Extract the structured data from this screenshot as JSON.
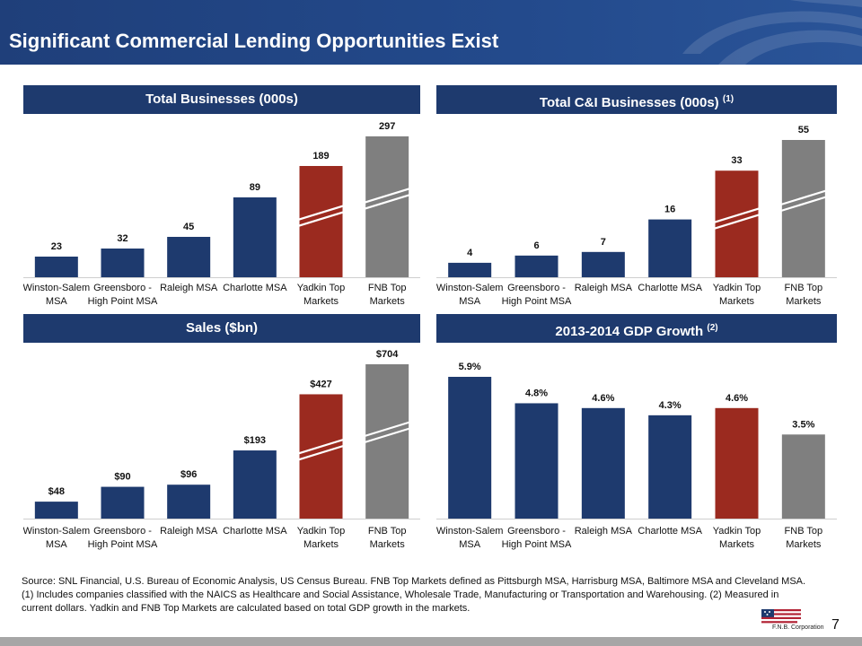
{
  "header": {
    "title": "Significant Commercial Lending Opportunities Exist"
  },
  "colors": {
    "navy": "#1e3a6e",
    "red": "#9b2a1f",
    "gray": "#7f7f7f",
    "header_blue": "#234a8c"
  },
  "panels": {
    "total_businesses": {
      "title": "Total Businesses (000s)",
      "footnote": ""
    },
    "total_ci": {
      "title": "Total C&I Businesses (000s)",
      "footnote": "(1)"
    },
    "sales": {
      "title": "Sales ($bn)",
      "footnote": ""
    },
    "gdp": {
      "title": "2013-2014 GDP Growth",
      "footnote": "(2)"
    }
  },
  "chart_data": [
    {
      "type": "bar",
      "title": "Total Businesses (000s)",
      "categories": [
        "Winston-Salem MSA",
        "Greensboro - High Point MSA",
        "Raleigh MSA",
        "Charlotte MSA",
        "Yadkin Top Markets",
        "FNB Top Markets"
      ],
      "values": [
        23,
        32,
        45,
        89,
        189,
        297
      ],
      "labels": [
        "23",
        "32",
        "45",
        "89",
        "189",
        "297"
      ],
      "bar_colors": [
        "navy",
        "navy",
        "navy",
        "navy",
        "red",
        "gray"
      ],
      "axis_break": [
        false,
        false,
        false,
        false,
        true,
        true
      ]
    },
    {
      "type": "bar",
      "title": "Total C&I Businesses (000s)",
      "categories": [
        "Winston-Salem MSA",
        "Greensboro - High Point MSA",
        "Raleigh MSA",
        "Charlotte MSA",
        "Yadkin Top Markets",
        "FNB Top Markets"
      ],
      "values": [
        4,
        6,
        7,
        16,
        33,
        55
      ],
      "labels": [
        "4",
        "6",
        "7",
        "16",
        "33",
        "55"
      ],
      "bar_colors": [
        "navy",
        "navy",
        "navy",
        "navy",
        "red",
        "gray"
      ],
      "axis_break": [
        false,
        false,
        false,
        false,
        true,
        true
      ]
    },
    {
      "type": "bar",
      "title": "Sales ($bn)",
      "categories": [
        "Winston-Salem MSA",
        "Greensboro - High Point MSA",
        "Raleigh MSA",
        "Charlotte MSA",
        "Yadkin Top Markets",
        "FNB Top Markets"
      ],
      "values": [
        48,
        90,
        96,
        193,
        427,
        704
      ],
      "labels": [
        "$48",
        "$90",
        "$96",
        "$193",
        "$427",
        "$704"
      ],
      "bar_colors": [
        "navy",
        "navy",
        "navy",
        "navy",
        "red",
        "gray"
      ],
      "axis_break": [
        false,
        false,
        false,
        false,
        true,
        true
      ]
    },
    {
      "type": "bar",
      "title": "2013-2014 GDP Growth",
      "categories": [
        "Winston-Salem MSA",
        "Greensboro - High Point MSA",
        "Raleigh MSA",
        "Charlotte MSA",
        "Yadkin Top Markets",
        "FNB Top Markets"
      ],
      "values": [
        5.9,
        4.8,
        4.6,
        4.3,
        4.6,
        3.5
      ],
      "labels": [
        "5.9%",
        "4.8%",
        "4.6%",
        "4.3%",
        "4.6%",
        "3.5%"
      ],
      "bar_colors": [
        "navy",
        "navy",
        "navy",
        "navy",
        "red",
        "gray"
      ],
      "axis_break": [
        false,
        false,
        false,
        false,
        false,
        false
      ]
    }
  ],
  "tick_label_lines": [
    [
      "Winston-Salem",
      "MSA"
    ],
    [
      "Greensboro -",
      "High Point MSA"
    ],
    [
      "Raleigh MSA"
    ],
    [
      "Charlotte MSA"
    ],
    [
      "Yadkin Top",
      "Markets"
    ],
    [
      "FNB Top",
      "Markets"
    ]
  ],
  "source": {
    "line1": "Source:     SNL Financial, U.S. Bureau of Economic Analysis, US Census Bureau. FNB Top Markets defined as Pittsburgh MSA, Harrisburg MSA, Baltimore MSA and Cleveland MSA.",
    "line2": "(1) Includes companies classified with the NAICS as Healthcare and Social Assistance, Wholesale Trade, Manufacturing or Transportation and Warehousing.  (2) Measured in",
    "line3": "current dollars. Yadkin and FNB Top Markets are calculated based on total GDP growth in the markets."
  },
  "footer": {
    "page_number": "7",
    "logo_text": "F.N.B. Corporation"
  }
}
